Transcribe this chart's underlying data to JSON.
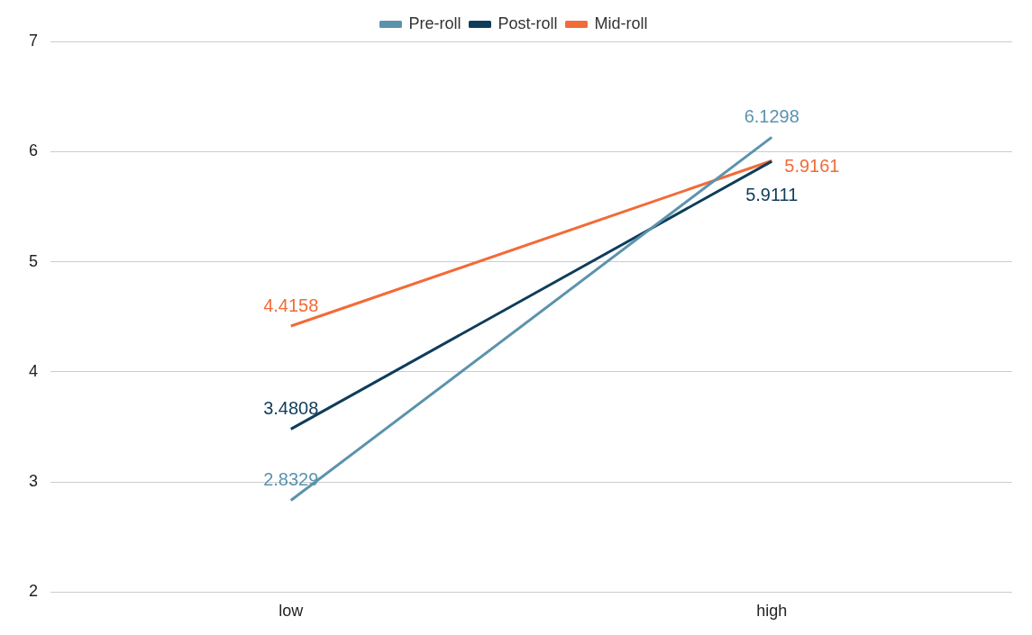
{
  "chart_data": {
    "type": "line",
    "categories": [
      "low",
      "high"
    ],
    "series": [
      {
        "name": "Pre-roll",
        "color": "#5b93ad",
        "values": [
          2.8329,
          6.1298
        ]
      },
      {
        "name": "Post-roll",
        "color": "#0e3d5a",
        "values": [
          3.4808,
          5.9111
        ]
      },
      {
        "name": "Mid-roll",
        "color": "#f26b38",
        "values": [
          4.4158,
          5.9161
        ]
      }
    ],
    "ylim": [
      2,
      7
    ],
    "yticks": [
      2,
      3,
      4,
      5,
      6,
      7
    ],
    "grid": "y",
    "legend": "top",
    "marker": "none",
    "line_style": "solid",
    "data_labels": true
  }
}
